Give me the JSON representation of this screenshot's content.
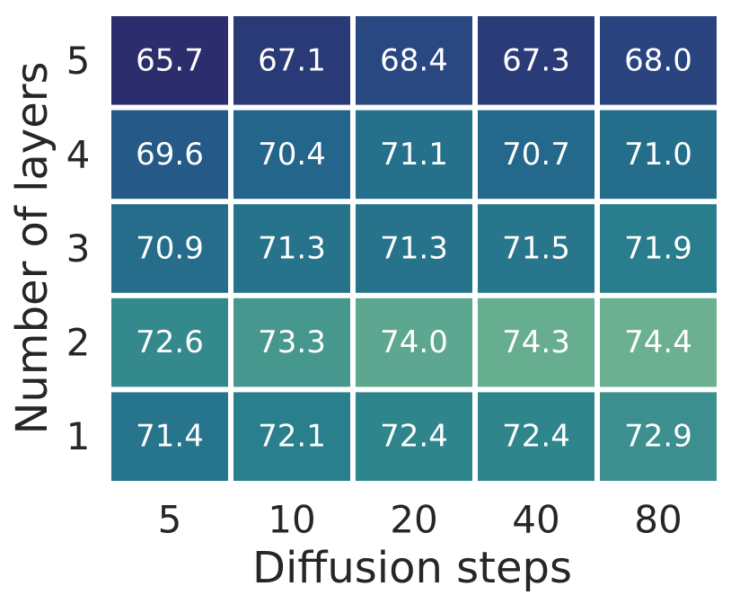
{
  "chart_data": {
    "type": "heatmap",
    "title": "",
    "xlabel": "Diffusion steps",
    "ylabel": "Number of layers",
    "x_categories": [
      "5",
      "10",
      "20",
      "40",
      "80"
    ],
    "y_categories": [
      "5",
      "4",
      "3",
      "2",
      "1"
    ],
    "values": [
      [
        65.7,
        67.1,
        68.4,
        67.3,
        68.0
      ],
      [
        69.6,
        70.4,
        71.1,
        70.7,
        71.0
      ],
      [
        70.9,
        71.3,
        71.3,
        71.5,
        71.9
      ],
      [
        72.6,
        73.3,
        74.0,
        74.3,
        74.4
      ],
      [
        71.4,
        72.1,
        72.4,
        72.4,
        72.9
      ]
    ],
    "value_format": "0.1f",
    "colormap": "crest",
    "color_range": [
      65.7,
      74.4
    ],
    "colorbar": false,
    "grid": false,
    "cell_separator_color": "#ffffff"
  }
}
